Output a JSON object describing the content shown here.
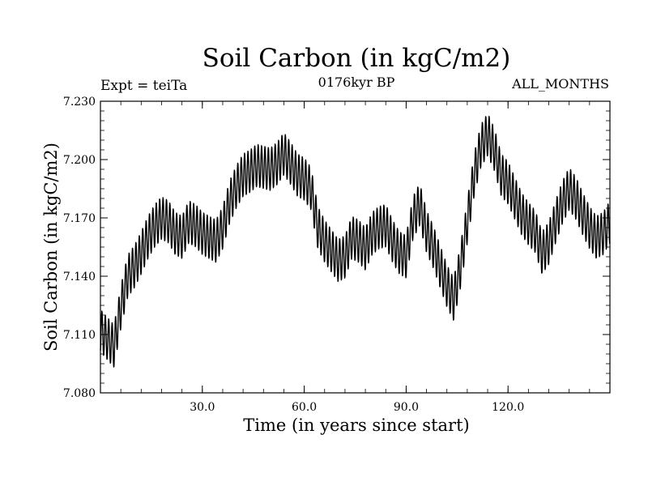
{
  "chart_data": {
    "type": "line",
    "title": "Soil Carbon (in kgC/m2)",
    "subtitle": "0176kyr BP",
    "experiment_label": "Expt = teiTa",
    "period_label": "ALL_MONTHS",
    "xlabel": "Time (in years since start)",
    "ylabel": "Soil Carbon (in kgC/m2)",
    "xlim": [
      0,
      150
    ],
    "ylim": [
      7.08,
      7.23
    ],
    "x_ticks": [
      30.0,
      60.0,
      90.0,
      120.0
    ],
    "x_tick_labels": [
      "30.0",
      "60.0",
      "90.0",
      "120.0"
    ],
    "y_ticks": [
      7.08,
      7.11,
      7.14,
      7.17,
      7.2,
      7.23
    ],
    "y_tick_labels": [
      "7.080",
      "7.110",
      "7.140",
      "7.170",
      "7.200",
      "7.230"
    ],
    "seasonal_amplitude": 0.011,
    "series": [
      {
        "name": "Soil Carbon",
        "color": "#000000",
        "x": [
          0,
          2,
          4,
          6,
          8,
          10,
          12,
          14,
          16,
          18,
          20,
          22,
          24,
          26,
          28,
          30,
          32,
          34,
          36,
          38,
          40,
          42,
          44,
          46,
          48,
          50,
          52,
          54,
          56,
          58,
          60,
          62,
          64,
          66,
          68,
          70,
          72,
          74,
          76,
          78,
          80,
          82,
          84,
          86,
          88,
          90,
          92,
          94,
          96,
          98,
          100,
          102,
          104,
          106,
          108,
          110,
          112,
          114,
          116,
          118,
          120,
          122,
          124,
          126,
          128,
          130,
          132,
          134,
          136,
          138,
          140,
          142,
          144,
          146,
          148,
          150
        ],
        "values": [
          7.112,
          7.108,
          7.104,
          7.124,
          7.14,
          7.145,
          7.152,
          7.16,
          7.166,
          7.17,
          7.168,
          7.162,
          7.16,
          7.168,
          7.166,
          7.162,
          7.16,
          7.158,
          7.165,
          7.178,
          7.186,
          7.192,
          7.194,
          7.197,
          7.196,
          7.195,
          7.198,
          7.203,
          7.198,
          7.192,
          7.19,
          7.185,
          7.165,
          7.158,
          7.153,
          7.148,
          7.15,
          7.16,
          7.158,
          7.154,
          7.162,
          7.165,
          7.166,
          7.158,
          7.152,
          7.15,
          7.17,
          7.177,
          7.163,
          7.155,
          7.145,
          7.135,
          7.128,
          7.145,
          7.168,
          7.192,
          7.207,
          7.213,
          7.205,
          7.192,
          7.188,
          7.18,
          7.172,
          7.167,
          7.163,
          7.152,
          7.157,
          7.168,
          7.178,
          7.185,
          7.18,
          7.172,
          7.165,
          7.16,
          7.162,
          7.168
        ]
      }
    ]
  }
}
